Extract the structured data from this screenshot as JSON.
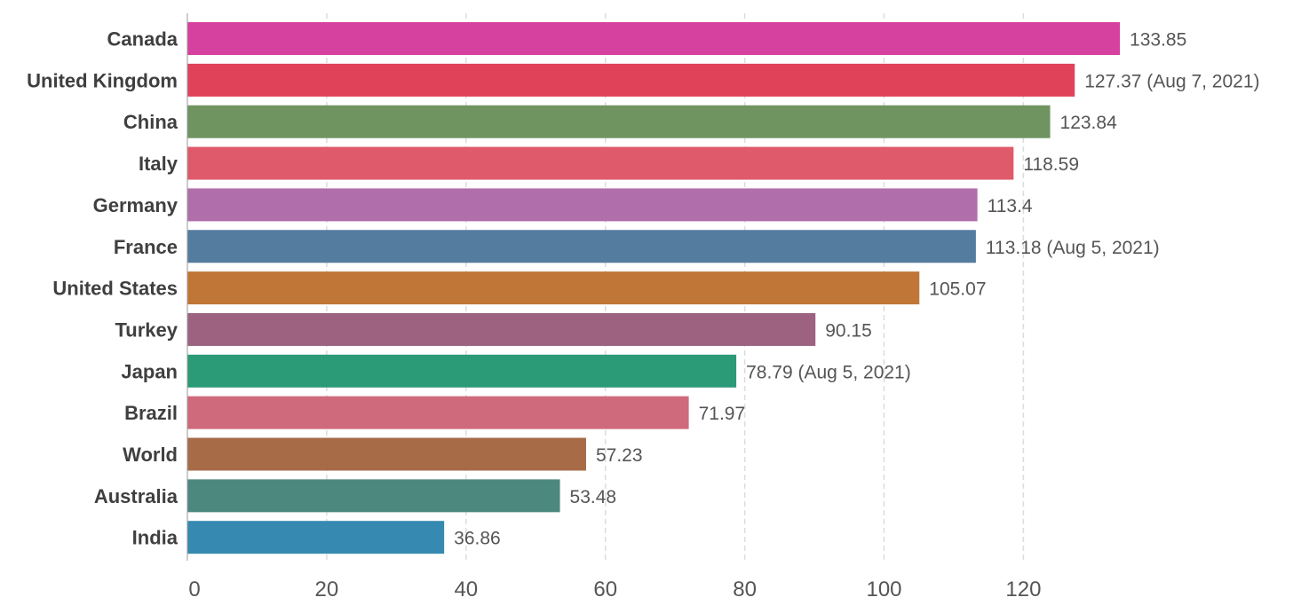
{
  "chart_data": {
    "type": "bar",
    "orientation": "horizontal",
    "title": "",
    "xlabel": "",
    "ylabel": "",
    "xlim": [
      0,
      140
    ],
    "ticks": [
      0,
      20,
      40,
      60,
      80,
      100,
      120
    ],
    "grid": true,
    "categories": [
      "Canada",
      "United Kingdom",
      "China",
      "Italy",
      "Germany",
      "France",
      "United States",
      "Turkey",
      "Japan",
      "Brazil",
      "World",
      "Australia",
      "India"
    ],
    "values": [
      133.85,
      127.37,
      123.84,
      118.59,
      113.4,
      113.18,
      105.07,
      90.15,
      78.79,
      71.97,
      57.23,
      53.48,
      36.86
    ],
    "value_labels": [
      "133.85",
      "127.37 (Aug 7, 2021)",
      "123.84",
      "118.59",
      "113.4",
      "113.18 (Aug 5, 2021)",
      "105.07",
      "90.15",
      "78.79 (Aug 5, 2021)",
      "71.97",
      "57.23",
      "53.48",
      "36.86"
    ],
    "colors": [
      "#d6409f",
      "#e0425a",
      "#6f9460",
      "#df5a6a",
      "#b06eaa",
      "#547c9e",
      "#c07636",
      "#9c6280",
      "#2a9a77",
      "#cf6a7c",
      "#a86b48",
      "#4d887e",
      "#3689b0"
    ]
  }
}
